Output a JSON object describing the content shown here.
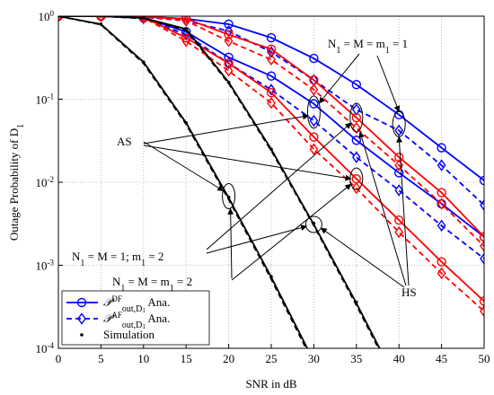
{
  "chart_data": {
    "type": "line",
    "xlabel": "SNR in dB",
    "ylabel": [
      {
        "text": "Outage Probability of D"
      },
      {
        "sub": "1"
      }
    ],
    "x": [
      0,
      5,
      10,
      15,
      20,
      25,
      30,
      35,
      40,
      45,
      50
    ],
    "xlim": [
      0,
      50
    ],
    "xticks": [
      0,
      5,
      10,
      15,
      20,
      25,
      30,
      35,
      40,
      45,
      50
    ],
    "ylim": [
      0.0001,
      1
    ],
    "log_y": true,
    "yticks": [
      {
        "value": 0.0001,
        "label": "10",
        "exponent": "-4"
      },
      {
        "value": 0.001,
        "label": "10",
        "exponent": "-3"
      },
      {
        "value": 0.01,
        "label": "10",
        "exponent": "-2"
      },
      {
        "value": 0.1,
        "label": "10",
        "exponent": "-1"
      },
      {
        "value": 1,
        "label": "10",
        "exponent": "0"
      }
    ],
    "grid": true,
    "legend_position": "lower left",
    "series": [
      {
        "color": "#0000ff",
        "dash": false,
        "marker": "circle",
        "values": [
          1,
          1,
          0.98,
          0.93,
          0.8,
          0.55,
          0.31,
          0.15,
          0.065,
          0.026,
          0.0105
        ]
      },
      {
        "color": "#0000ff",
        "dash": true,
        "marker": "diamond",
        "values": [
          1,
          1,
          0.97,
          0.88,
          0.66,
          0.37,
          0.17,
          0.075,
          0.042,
          0.016,
          0.0053
        ]
      },
      {
        "color": "#0000ff",
        "dash": false,
        "marker": "circle",
        "values": [
          1,
          1,
          0.95,
          0.65,
          0.32,
          0.19,
          0.088,
          0.032,
          0.013,
          0.0055,
          0.0022
        ]
      },
      {
        "color": "#0000ff",
        "dash": true,
        "marker": "diamond",
        "values": [
          1,
          1,
          0.94,
          0.6,
          0.27,
          0.13,
          0.055,
          0.02,
          0.008,
          0.003,
          0.0012
        ]
      },
      {
        "color": "#ff0000",
        "dash": false,
        "marker": "circle",
        "values": [
          1,
          1,
          0.99,
          0.93,
          0.6,
          0.4,
          0.17,
          0.06,
          0.02,
          0.0075,
          0.0022
        ]
      },
      {
        "color": "#ff0000",
        "dash": true,
        "marker": "diamond",
        "values": [
          1,
          1,
          0.98,
          0.88,
          0.5,
          0.3,
          0.13,
          0.045,
          0.016,
          0.0055,
          0.0017
        ]
      },
      {
        "color": "#ff0000",
        "dash": false,
        "marker": "circle",
        "values": [
          1,
          1,
          0.97,
          0.55,
          0.27,
          0.12,
          0.035,
          0.011,
          0.0035,
          0.0011,
          0.00037
        ]
      },
      {
        "color": "#ff0000",
        "dash": true,
        "marker": "diamond",
        "values": [
          1,
          1,
          0.96,
          0.5,
          0.22,
          0.09,
          0.025,
          0.0085,
          0.0025,
          0.0008,
          0.00028
        ]
      },
      {
        "color": "#000000",
        "dash": false,
        "marker": "none",
        "values": [
          1,
          0.8,
          0.28,
          0.052,
          0.0065,
          0.00072,
          7e-05,
          null,
          null,
          null,
          null
        ]
      },
      {
        "color": "#000000",
        "dash": true,
        "marker": "none",
        "values": [
          1,
          0.79,
          0.27,
          0.05,
          0.0062,
          0.00068,
          6.5e-05,
          null,
          null,
          null,
          null
        ]
      },
      {
        "color": "#000000",
        "dash": false,
        "marker": "none",
        "values": [
          1,
          1,
          0.95,
          0.7,
          0.16,
          0.025,
          0.0031,
          0.00035,
          3.5e-05,
          null,
          null
        ]
      },
      {
        "color": "#000000",
        "dash": true,
        "marker": "none",
        "values": [
          1,
          1,
          0.94,
          0.68,
          0.155,
          0.024,
          0.003,
          0.00033,
          3.3e-05,
          null,
          null
        ]
      },
      {
        "color": "#000000",
        "dash": null,
        "marker": "dot",
        "values": [
          1,
          0.8,
          0.28,
          0.052,
          0.0066,
          0.00073,
          null,
          null,
          null,
          null,
          null
        ]
      },
      {
        "color": "#000000",
        "dash": null,
        "marker": "dot",
        "values": [
          1,
          1,
          0.95,
          0.7,
          0.16,
          0.025,
          0.0032,
          0.00036,
          null,
          null,
          null
        ]
      }
    ],
    "legend": [
      {
        "color": "#0000ff",
        "dash": false,
        "marker": "circle",
        "label": [
          {
            "text": "𝒫"
          },
          {
            "sup": "DF"
          },
          {
            "sub": "out,D"
          },
          {
            "subsub": "1"
          },
          {
            "text": " Ana."
          }
        ]
      },
      {
        "color": "#0000ff",
        "dash": true,
        "marker": "diamond",
        "label": [
          {
            "text": "𝒫"
          },
          {
            "sup": "AF"
          },
          {
            "sub": "out,D"
          },
          {
            "subsub": "1"
          },
          {
            "text": " Ana."
          }
        ]
      },
      {
        "color": "#000000",
        "dash": null,
        "marker": "dot",
        "label": [
          {
            "text": "Simulation"
          }
        ]
      }
    ],
    "annotations": [
      [
        {
          "text": "N"
        },
        {
          "sub": "1"
        },
        {
          "text": " = M = m"
        },
        {
          "sub": "1"
        },
        {
          "text": " = 1"
        }
      ],
      [
        {
          "text": "AS"
        }
      ],
      [
        {
          "text": "N"
        },
        {
          "sub": "1"
        },
        {
          "text": " = M = 1; m"
        },
        {
          "sub": "1"
        },
        {
          "text": " = 2"
        }
      ],
      [
        {
          "text": "N"
        },
        {
          "sub": "1"
        },
        {
          "text": " = M = m"
        },
        {
          "sub": "1"
        },
        {
          "text": " = 2"
        }
      ],
      [
        {
          "text": "HS"
        }
      ]
    ]
  }
}
